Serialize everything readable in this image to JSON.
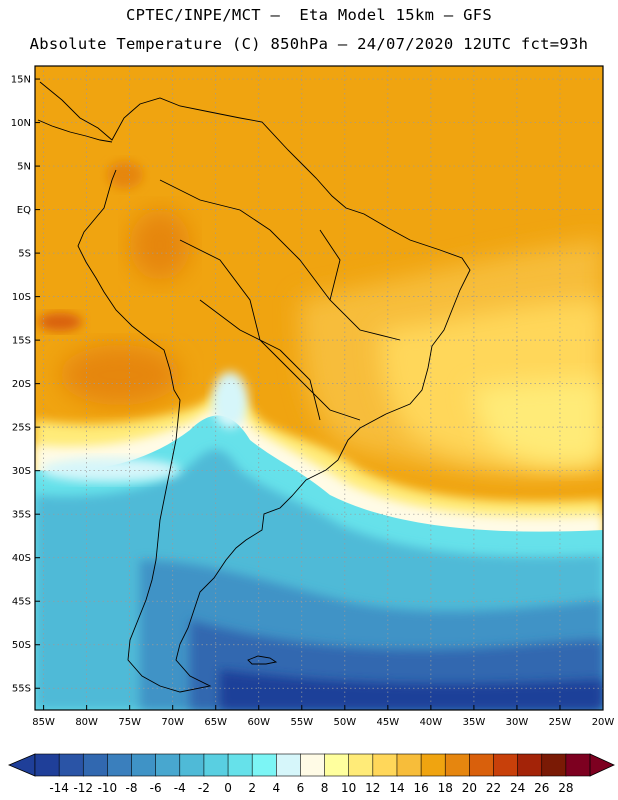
{
  "header": {
    "line1": "CPTEC/INPE/MCT –  Eta Model 15km – GFS",
    "line2": "Absolute Temperature (C) 850hPa – 24/07/2020 12UTC fct=93h"
  },
  "map": {
    "lat_labels": [
      "15N",
      "10N",
      "5N",
      "EQ",
      "5S",
      "10S",
      "15S",
      "20S",
      "25S",
      "30S",
      "35S",
      "40S",
      "45S",
      "50S",
      "55S"
    ],
    "lon_labels": [
      "85W",
      "80W",
      "75W",
      "70W",
      "65W",
      "60W",
      "55W",
      "50W",
      "45W",
      "40W",
      "35W",
      "30W",
      "25W",
      "20W"
    ],
    "lat_values": [
      15,
      10,
      5,
      0,
      -5,
      -10,
      -15,
      -20,
      -25,
      -30,
      -35,
      -40,
      -45,
      -50,
      -55
    ],
    "lon_values": [
      -85,
      -80,
      -75,
      -70,
      -65,
      -60,
      -55,
      -50,
      -45,
      -40,
      -35,
      -30,
      -25,
      -20
    ],
    "lat_range": [
      -57.5,
      16.5
    ],
    "lon_range": [
      -86,
      -20
    ]
  },
  "colorbar": {
    "labels": [
      "-14",
      "-12",
      "-10",
      "-8",
      "-6",
      "-4",
      "-2",
      "0",
      "2",
      "4",
      "6",
      "8",
      "10",
      "12",
      "14",
      "16",
      "18",
      "20",
      "22",
      "24",
      "26",
      "28"
    ],
    "colors": [
      "#1f3f99",
      "#2a54a6",
      "#3168b0",
      "#3a7fbd",
      "#3f93c6",
      "#48a7cf",
      "#4fbad7",
      "#59cfe1",
      "#66e1ea",
      "#7cf5f5",
      "#d6f6fa",
      "#fffbe6",
      "#ffff9e",
      "#ffeb78",
      "#ffd75a",
      "#f7bd3a",
      "#f0a410",
      "#e6860f",
      "#d9600c",
      "#c8400a",
      "#a32308",
      "#7a1a05",
      "#7d0020"
    ]
  },
  "colors": {
    "land_border": "#000000",
    "grid": "#9a9a9a",
    "warm_bg": "#f0a30e"
  }
}
